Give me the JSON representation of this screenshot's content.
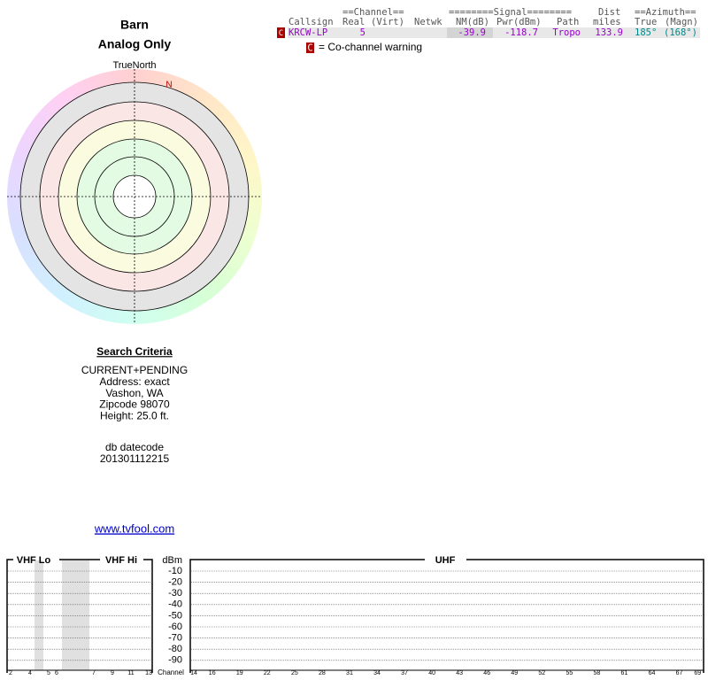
{
  "header": {
    "title": "Barn",
    "subtitle": "Analog Only"
  },
  "compass": {
    "north_label": "TrueNorth",
    "n": "N"
  },
  "table": {
    "group_headers": [
      "==Channel==",
      "========Signal========",
      "Dist",
      "==Azimuth=="
    ],
    "columns": [
      "Callsign",
      "Real",
      "(Virt)",
      "Netwk",
      "NM(dB)",
      "Pwr(dBm)",
      "Path",
      "miles",
      "True",
      "(Magn)"
    ],
    "rows": [
      {
        "flag": "C",
        "callsign": "KRCW-LP",
        "real": 5,
        "nm_db": -39.9,
        "pwr_dbm": -118.7,
        "path": "Tropo",
        "dist_miles": 133.9,
        "azimuth_true": "185°",
        "azimuth_magn": "(168°)"
      }
    ]
  },
  "legend": {
    "flag": "C",
    "text": "= Co-channel warning"
  },
  "search": {
    "title": "Search Criteria",
    "lines": [
      "CURRENT+PENDING",
      "Address: exact",
      "Vashon, WA",
      "Zipcode 98070",
      "Height: 25.0 ft."
    ]
  },
  "datecode": {
    "label": "db datecode",
    "value": "201301112215"
  },
  "link": "www.tvfool.com",
  "spectrum": {
    "vhf_lo": "VHF Lo",
    "vhf_hi": "VHF Hi",
    "uhf": "UHF",
    "unit": "dBm",
    "ticks": [
      -10,
      -20,
      -30,
      -40,
      -50,
      -60,
      -70,
      -80,
      -90
    ],
    "channel_label": "Channel",
    "vhf_channels": [
      2,
      4,
      5,
      6,
      7,
      9,
      11,
      13
    ],
    "uhf_channels": [
      14,
      16,
      19,
      22,
      25,
      28,
      31,
      34,
      37,
      40,
      43,
      46,
      49,
      52,
      55,
      58,
      61,
      64,
      67,
      69
    ]
  }
}
